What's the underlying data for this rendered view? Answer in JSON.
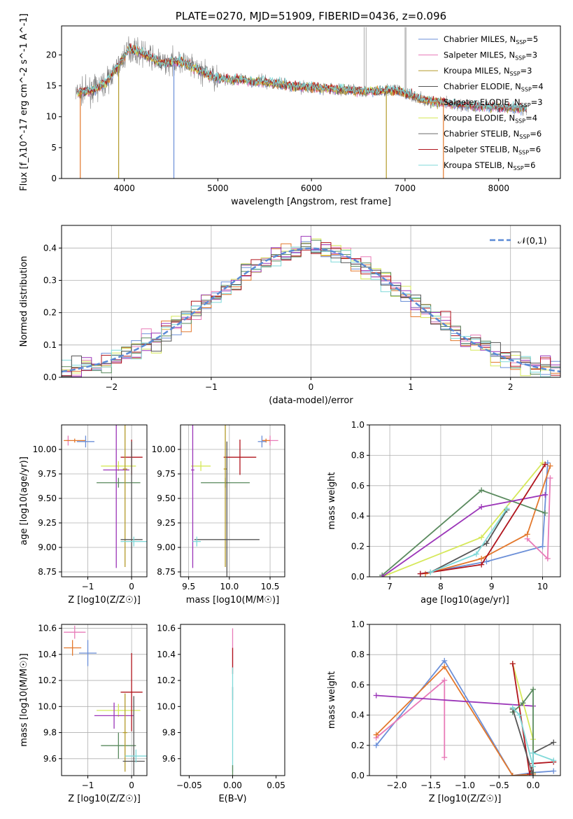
{
  "chart_data": [
    {
      "id": "spectrum",
      "type": "line",
      "title": "PLATE=0270, MJD=51909, FIBERID=0436, z=0.096",
      "xlabel": "wavelength [Angstrom, rest frame]",
      "ylabel": "Flux [f_λ10^-17 erg cm^-2 s^-1 A^-1]",
      "xlim": [
        3330,
        8660
      ],
      "ylim": [
        0,
        24.7
      ],
      "xticks": [
        4000,
        5000,
        6000,
        7000,
        8000
      ],
      "yticks": [
        0,
        5,
        10,
        15,
        20
      ],
      "grid": false,
      "legend_placement": "top-right",
      "data_range": [
        3480,
        8300
      ],
      "continuum": [
        [
          3500,
          13.8
        ],
        [
          3650,
          14.2
        ],
        [
          3800,
          15.5
        ],
        [
          3950,
          18.5
        ],
        [
          4050,
          21.0
        ],
        [
          4200,
          20.3
        ],
        [
          4400,
          18.6
        ],
        [
          4600,
          19.0
        ],
        [
          4800,
          17.5
        ],
        [
          5000,
          16.2
        ],
        [
          5200,
          16.0
        ],
        [
          5500,
          15.6
        ],
        [
          5800,
          15.0
        ],
        [
          6200,
          14.5
        ],
        [
          6600,
          14.1
        ],
        [
          6900,
          14.3
        ],
        [
          7200,
          12.7
        ],
        [
          7500,
          12.0
        ],
        [
          7800,
          11.7
        ],
        [
          8100,
          11.4
        ],
        [
          8300,
          11.3
        ]
      ],
      "dips": [
        [
          3530,
          0
        ],
        [
          3940,
          0
        ],
        [
          4530,
          0
        ],
        [
          6800,
          0
        ],
        [
          7410,
          0
        ]
      ],
      "series": [
        {
          "name": "Chabrier MILES",
          "nssp": "5",
          "color": "#6b8fd8",
          "range": [
            3500,
            8300
          ]
        },
        {
          "name": "Salpeter MILES",
          "nssp": "3",
          "color": "#e87bb8",
          "range": [
            3500,
            8300
          ]
        },
        {
          "name": "Kroupa MILES",
          "nssp": "3",
          "color": "#b39a2a",
          "range": [
            3500,
            8300
          ]
        },
        {
          "name": "Chabrier ELODIE",
          "nssp": "4",
          "color": "#555555",
          "range": [
            3500,
            7400
          ]
        },
        {
          "name": "Salpeter ELODIE",
          "nssp": "3",
          "color": "#e3782c",
          "range": [
            3500,
            7400
          ]
        },
        {
          "name": "Kroupa ELODIE",
          "nssp": "4",
          "color": "#d6e85a",
          "range": [
            3500,
            7400
          ]
        },
        {
          "name": "Chabrier STELIB",
          "nssp": "6",
          "color": "#6b6b6b",
          "range": [
            3500,
            8300
          ]
        },
        {
          "name": "Salpeter STELIB",
          "nssp": "6",
          "color": "#b0141c",
          "range": [
            3500,
            8300
          ]
        },
        {
          "name": "Kroupa STELIB",
          "nssp": "6",
          "color": "#7fd9d9",
          "range": [
            3500,
            8300
          ]
        }
      ]
    },
    {
      "id": "residuals",
      "type": "bar",
      "xlabel": "(data-model)/error",
      "ylabel": "Normed distribution",
      "xlim": [
        -2.5,
        2.5
      ],
      "ylim": [
        0,
        0.47
      ],
      "xticks": [
        -2,
        -1,
        0,
        1,
        2
      ],
      "yticks": [
        0.0,
        0.1,
        0.2,
        0.3,
        0.4
      ],
      "grid": true,
      "legend": "𝒩(0,1)",
      "legend_placement": "top-right",
      "bin_width": 0.1,
      "series_colors": [
        "#6b8fd8",
        "#e87bb8",
        "#e3782c",
        "#d6e85a",
        "#5a8a5e",
        "#9b35b8",
        "#b0141c",
        "#7fd9d9",
        "#555555"
      ]
    },
    {
      "id": "age-vs-Z",
      "type": "scatter",
      "xlabel": "Z [log10(Z/Z☉)]",
      "ylabel": "age  [log10(age/yr)]",
      "xlim": [
        -1.6,
        0.35
      ],
      "ylim": [
        8.7,
        10.25
      ],
      "xticks": [
        -1,
        0
      ],
      "yticks": [
        8.75,
        9.0,
        9.25,
        9.5,
        9.75,
        10.0
      ],
      "grid": true,
      "points": [
        {
          "x": -1.45,
          "y": 10.09,
          "xerr": 0.05,
          "yerr": 0.05,
          "color": "#e87bb8"
        },
        {
          "x": -1.3,
          "y": 10.09,
          "xerr": 0.25,
          "yerr": 0.02,
          "color": "#e3782c"
        },
        {
          "x": -1.05,
          "y": 10.08,
          "xerr": 0.2,
          "yerr": 0.06,
          "color": "#6b8fd8"
        },
        {
          "x": -0.3,
          "y": 9.83,
          "xerr": 0.4,
          "yerr": 0.05,
          "color": "#d6e85a"
        },
        {
          "x": -0.35,
          "y": 9.79,
          "xerr": 0.3,
          "yerr": 1.0,
          "color": "#9b35b8"
        },
        {
          "x": -0.3,
          "y": 9.66,
          "xerr": 0.5,
          "yerr": 0.05,
          "color": "#5a8a5e"
        },
        {
          "x": 0.0,
          "y": 9.92,
          "xerr": 0.25,
          "yerr": 0.18,
          "color": "#b0141c"
        },
        {
          "x": -0.15,
          "y": 9.8,
          "xerr": 0.05,
          "yerr": 1.0,
          "color": "#b39a2a"
        },
        {
          "x": 0.0,
          "y": 9.08,
          "xerr": 0.25,
          "yerr": 1.0,
          "color": "#555555"
        },
        {
          "x": 0.05,
          "y": 9.06,
          "xerr": 0.3,
          "yerr": 0.05,
          "color": "#7fd9d9"
        }
      ]
    },
    {
      "id": "age-vs-mass",
      "type": "scatter",
      "xlabel": "mass [log10(M/M☉)]",
      "xlim": [
        9.4,
        10.68
      ],
      "ylim": [
        8.7,
        10.25
      ],
      "xticks": [
        9.5,
        10.0,
        10.5
      ],
      "yticks": [
        8.75,
        9.0,
        9.25,
        9.5,
        9.75,
        10.0
      ],
      "grid": true,
      "points": [
        {
          "x": 10.5,
          "y": 10.09,
          "xerr": 0.1,
          "yerr": 0.05,
          "color": "#e87bb8"
        },
        {
          "x": 10.45,
          "y": 10.09,
          "xerr": 0.05,
          "yerr": 0.02,
          "color": "#e3782c"
        },
        {
          "x": 10.4,
          "y": 10.08,
          "xerr": 0.05,
          "yerr": 0.06,
          "color": "#6b8fd8"
        },
        {
          "x": 9.65,
          "y": 9.83,
          "xerr": 0.12,
          "yerr": 0.05,
          "color": "#d6e85a"
        },
        {
          "x": 9.55,
          "y": 9.79,
          "xerr": 0.02,
          "yerr": 1.0,
          "color": "#9b35b8"
        },
        {
          "x": 9.95,
          "y": 9.66,
          "xerr": 0.3,
          "yerr": 0.05,
          "color": "#5a8a5e"
        },
        {
          "x": 10.13,
          "y": 9.92,
          "xerr": 0.2,
          "yerr": 0.18,
          "color": "#b0141c"
        },
        {
          "x": 9.95,
          "y": 9.8,
          "xerr": 0.02,
          "yerr": 1.0,
          "color": "#b39a2a"
        },
        {
          "x": 9.97,
          "y": 9.08,
          "xerr": 0.4,
          "yerr": 1.0,
          "color": "#555555"
        },
        {
          "x": 9.6,
          "y": 9.06,
          "xerr": 0.05,
          "yerr": 0.05,
          "color": "#7fd9d9"
        }
      ]
    },
    {
      "id": "weight-vs-age",
      "type": "line",
      "xlabel": "age  [log10(age/yr)]",
      "ylabel": "mass weight",
      "xlim": [
        6.6,
        10.35
      ],
      "ylim": [
        0,
        1.0
      ],
      "xticks": [
        7,
        8,
        9,
        10
      ],
      "yticks": [
        0.0,
        0.2,
        0.4,
        0.6,
        0.8,
        1.0
      ],
      "grid": true,
      "series": [
        {
          "color": "#6b8fd8",
          "points": [
            [
              7.6,
              0.02
            ],
            [
              8.9,
              0.1
            ],
            [
              10.0,
              0.2
            ],
            [
              10.1,
              0.75
            ]
          ]
        },
        {
          "color": "#e87bb8",
          "points": [
            [
              9.7,
              0.25
            ],
            [
              10.1,
              0.12
            ],
            [
              10.15,
              0.65
            ]
          ]
        },
        {
          "color": "#e3782c",
          "points": [
            [
              7.7,
              0.02
            ],
            [
              8.8,
              0.12
            ],
            [
              9.7,
              0.28
            ],
            [
              10.15,
              0.73
            ]
          ]
        },
        {
          "color": "#d6e85a",
          "points": [
            [
              6.85,
              0.0
            ],
            [
              8.8,
              0.26
            ],
            [
              10.0,
              0.75
            ]
          ]
        },
        {
          "color": "#5a8a5e",
          "points": [
            [
              6.85,
              0.01
            ],
            [
              8.8,
              0.57
            ],
            [
              10.05,
              0.42
            ]
          ]
        },
        {
          "color": "#9b35b8",
          "points": [
            [
              6.85,
              0.0
            ],
            [
              8.8,
              0.46
            ],
            [
              10.05,
              0.54
            ]
          ]
        },
        {
          "color": "#b0141c",
          "points": [
            [
              7.6,
              0.02
            ],
            [
              8.8,
              0.08
            ],
            [
              10.05,
              0.74
            ]
          ]
        },
        {
          "color": "#555555",
          "points": [
            [
              7.8,
              0.03
            ],
            [
              8.9,
              0.22
            ],
            [
              9.3,
              0.44
            ]
          ]
        },
        {
          "color": "#7fd9d9",
          "points": [
            [
              7.8,
              0.03
            ],
            [
              8.7,
              0.15
            ],
            [
              9.3,
              0.45
            ]
          ]
        }
      ]
    },
    {
      "id": "mass-vs-Z",
      "type": "scatter",
      "xlabel": "Z [log10(Z/Z☉)]",
      "ylabel": "mass [log10(M/M☉)]",
      "xlim": [
        -1.6,
        0.35
      ],
      "ylim": [
        9.47,
        10.63
      ],
      "xticks": [
        -1,
        0
      ],
      "yticks": [
        9.6,
        9.8,
        10.0,
        10.2,
        10.4,
        10.6
      ],
      "grid": true,
      "points": [
        {
          "x": -1.3,
          "y": 10.57,
          "xerr": 0.25,
          "yerr": 0.05,
          "color": "#e87bb8"
        },
        {
          "x": -1.35,
          "y": 10.45,
          "xerr": 0.2,
          "yerr": 0.06,
          "color": "#e3782c"
        },
        {
          "x": -1.0,
          "y": 10.41,
          "xerr": 0.2,
          "yerr": 0.1,
          "color": "#6b8fd8"
        },
        {
          "x": -0.3,
          "y": 9.97,
          "xerr": 0.5,
          "yerr": 0.05,
          "color": "#d6e85a"
        },
        {
          "x": -0.4,
          "y": 9.93,
          "xerr": 0.45,
          "yerr": 0.1,
          "color": "#9b35b8"
        },
        {
          "x": -0.3,
          "y": 9.7,
          "xerr": 0.4,
          "yerr": 0.1,
          "color": "#5a8a5e"
        },
        {
          "x": 0.0,
          "y": 10.11,
          "xerr": 0.25,
          "yerr": 0.3,
          "color": "#b0141c"
        },
        {
          "x": -0.15,
          "y": 9.8,
          "xerr": 0.05,
          "yerr": 0.3,
          "color": "#b39a2a"
        },
        {
          "x": 0.05,
          "y": 9.58,
          "xerr": 0.25,
          "yerr": 0.5,
          "color": "#555555"
        },
        {
          "x": 0.1,
          "y": 9.62,
          "xerr": 0.25,
          "yerr": 0.05,
          "color": "#7fd9d9"
        }
      ]
    },
    {
      "id": "mass-vs-ebv",
      "type": "scatter",
      "xlabel": "E(B-V)",
      "xlim": [
        -0.06,
        0.06
      ],
      "ylim": [
        9.47,
        10.63
      ],
      "xticks": [
        -0.05,
        0.0,
        0.05
      ],
      "yticks": [
        9.6,
        9.8,
        10.0,
        10.2,
        10.4,
        10.6
      ],
      "grid": false,
      "points": [
        {
          "x": 0.0,
          "y": 10.45,
          "yerr": 0.15,
          "color": "#e87bb8"
        },
        {
          "x": 0.0,
          "y": 10.35,
          "yerr": 0.1,
          "color": "#b0141c"
        },
        {
          "x": 0.0,
          "y": 10.1,
          "yerr": 0.05,
          "color": "#555555"
        },
        {
          "x": 0.0,
          "y": 9.9,
          "yerr": 0.4,
          "color": "#7fd9d9"
        },
        {
          "x": 0.0,
          "y": 9.5,
          "yerr": 0.05,
          "color": "#5a8a5e"
        }
      ]
    },
    {
      "id": "weight-vs-Z",
      "type": "line",
      "xlabel": "Z [log10(Z/Z☉)]",
      "ylabel": "mass weight",
      "xlim": [
        -2.4,
        0.4
      ],
      "ylim": [
        0,
        1.0
      ],
      "xticks": [
        -2.0,
        -1.5,
        -1.0,
        -0.5,
        0.0
      ],
      "yticks": [
        0.0,
        0.2,
        0.4,
        0.6,
        0.8,
        1.0
      ],
      "grid": true,
      "series": [
        {
          "color": "#6b8fd8",
          "points": [
            [
              -2.3,
              0.2
            ],
            [
              -1.3,
              0.76
            ],
            [
              -0.3,
              0.0
            ],
            [
              0.0,
              0.02
            ],
            [
              0.3,
              0.03
            ]
          ]
        },
        {
          "color": "#e87bb8",
          "points": [
            [
              -2.3,
              0.25
            ],
            [
              -1.3,
              0.63
            ],
            [
              -1.3,
              0.12
            ]
          ]
        },
        {
          "color": "#e3782c",
          "points": [
            [
              -2.3,
              0.27
            ],
            [
              -1.3,
              0.72
            ],
            [
              -0.3,
              0.0
            ],
            [
              0.0,
              0.01
            ]
          ]
        },
        {
          "color": "#9b35b8",
          "points": [
            [
              -2.3,
              0.53
            ],
            [
              0.0,
              0.46
            ]
          ]
        },
        {
          "color": "#d6e85a",
          "points": [
            [
              -0.3,
              0.74
            ],
            [
              0.0,
              0.24
            ],
            [
              0.0,
              0.02
            ]
          ]
        },
        {
          "color": "#b0141c",
          "points": [
            [
              -0.3,
              0.74
            ],
            [
              -0.05,
              0.01
            ],
            [
              0.0,
              0.08
            ],
            [
              0.3,
              0.09
            ]
          ]
        },
        {
          "color": "#5a8a5e",
          "points": [
            [
              -0.3,
              0.42
            ],
            [
              -0.15,
              0.48
            ],
            [
              0.0,
              0.57
            ],
            [
              0.0,
              0.02
            ]
          ]
        },
        {
          "color": "#555555",
          "points": [
            [
              -0.3,
              0.44
            ],
            [
              0.0,
              0.0
            ],
            [
              0.0,
              0.15
            ],
            [
              0.3,
              0.22
            ]
          ]
        },
        {
          "color": "#7fd9d9",
          "points": [
            [
              -0.3,
              0.45
            ],
            [
              -0.2,
              0.4
            ],
            [
              0.0,
              0.06
            ],
            [
              0.0,
              0.15
            ],
            [
              0.3,
              0.1
            ]
          ]
        }
      ]
    }
  ]
}
